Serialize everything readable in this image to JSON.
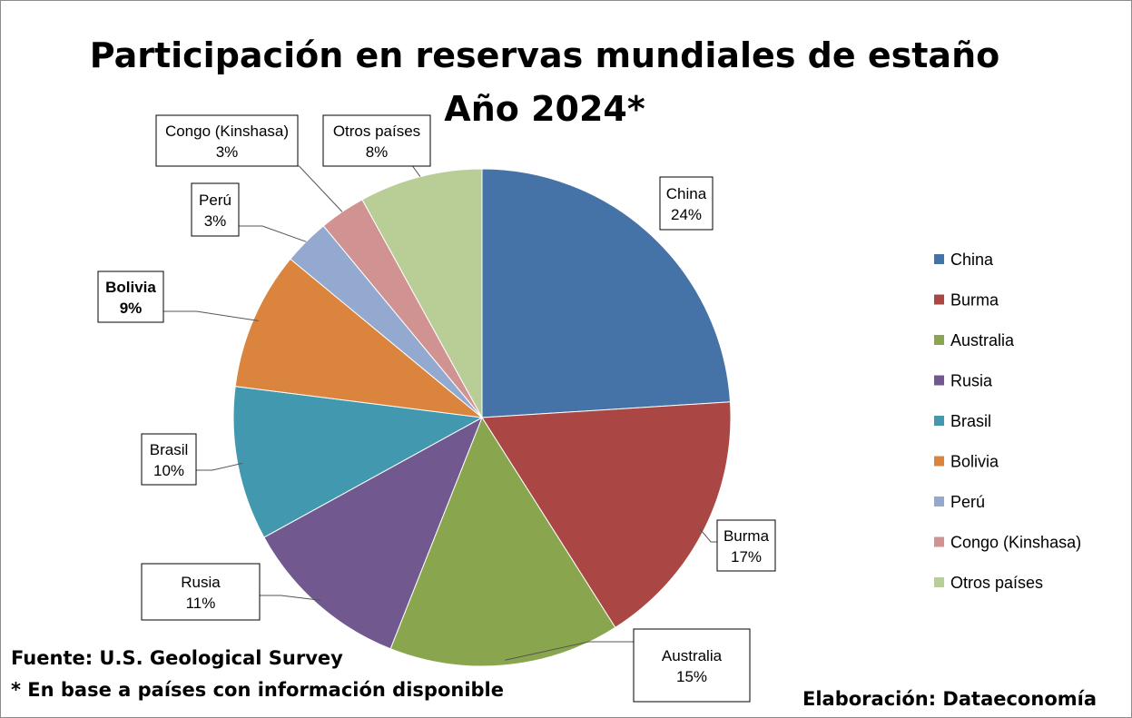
{
  "chart_data": {
    "type": "pie",
    "title": "Participación en reservas mundiales de estaño",
    "subtitle": "Año 2024*",
    "legend_position": "right",
    "slices": [
      {
        "label": "China",
        "value": 24,
        "pct_label": "24%",
        "color": "#4572A7"
      },
      {
        "label": "Burma",
        "value": 17,
        "pct_label": "17%",
        "color": "#AA4643"
      },
      {
        "label": "Australia",
        "value": 15,
        "pct_label": "15%",
        "color": "#89A54E"
      },
      {
        "label": "Rusia",
        "value": 11,
        "pct_label": "11%",
        "color": "#71588F"
      },
      {
        "label": "Brasil",
        "value": 10,
        "pct_label": "10%",
        "color": "#4198AF"
      },
      {
        "label": "Bolivia",
        "value": 9,
        "pct_label": "9%",
        "color": "#DB843D",
        "bold": true
      },
      {
        "label": "Perú",
        "value": 3,
        "pct_label": "3%",
        "color": "#93A9CF"
      },
      {
        "label": "Congo (Kinshasa)",
        "value": 3,
        "pct_label": "3%",
        "color": "#D19392"
      },
      {
        "label": "Otros países",
        "value": 8,
        "pct_label": "8%",
        "color": "#B9CD96"
      }
    ]
  },
  "footer": {
    "source": "Fuente: U.S. Geological Survey",
    "note": "* En base a países con información disponible",
    "credit": "Elaboración: Dataeconomía"
  }
}
